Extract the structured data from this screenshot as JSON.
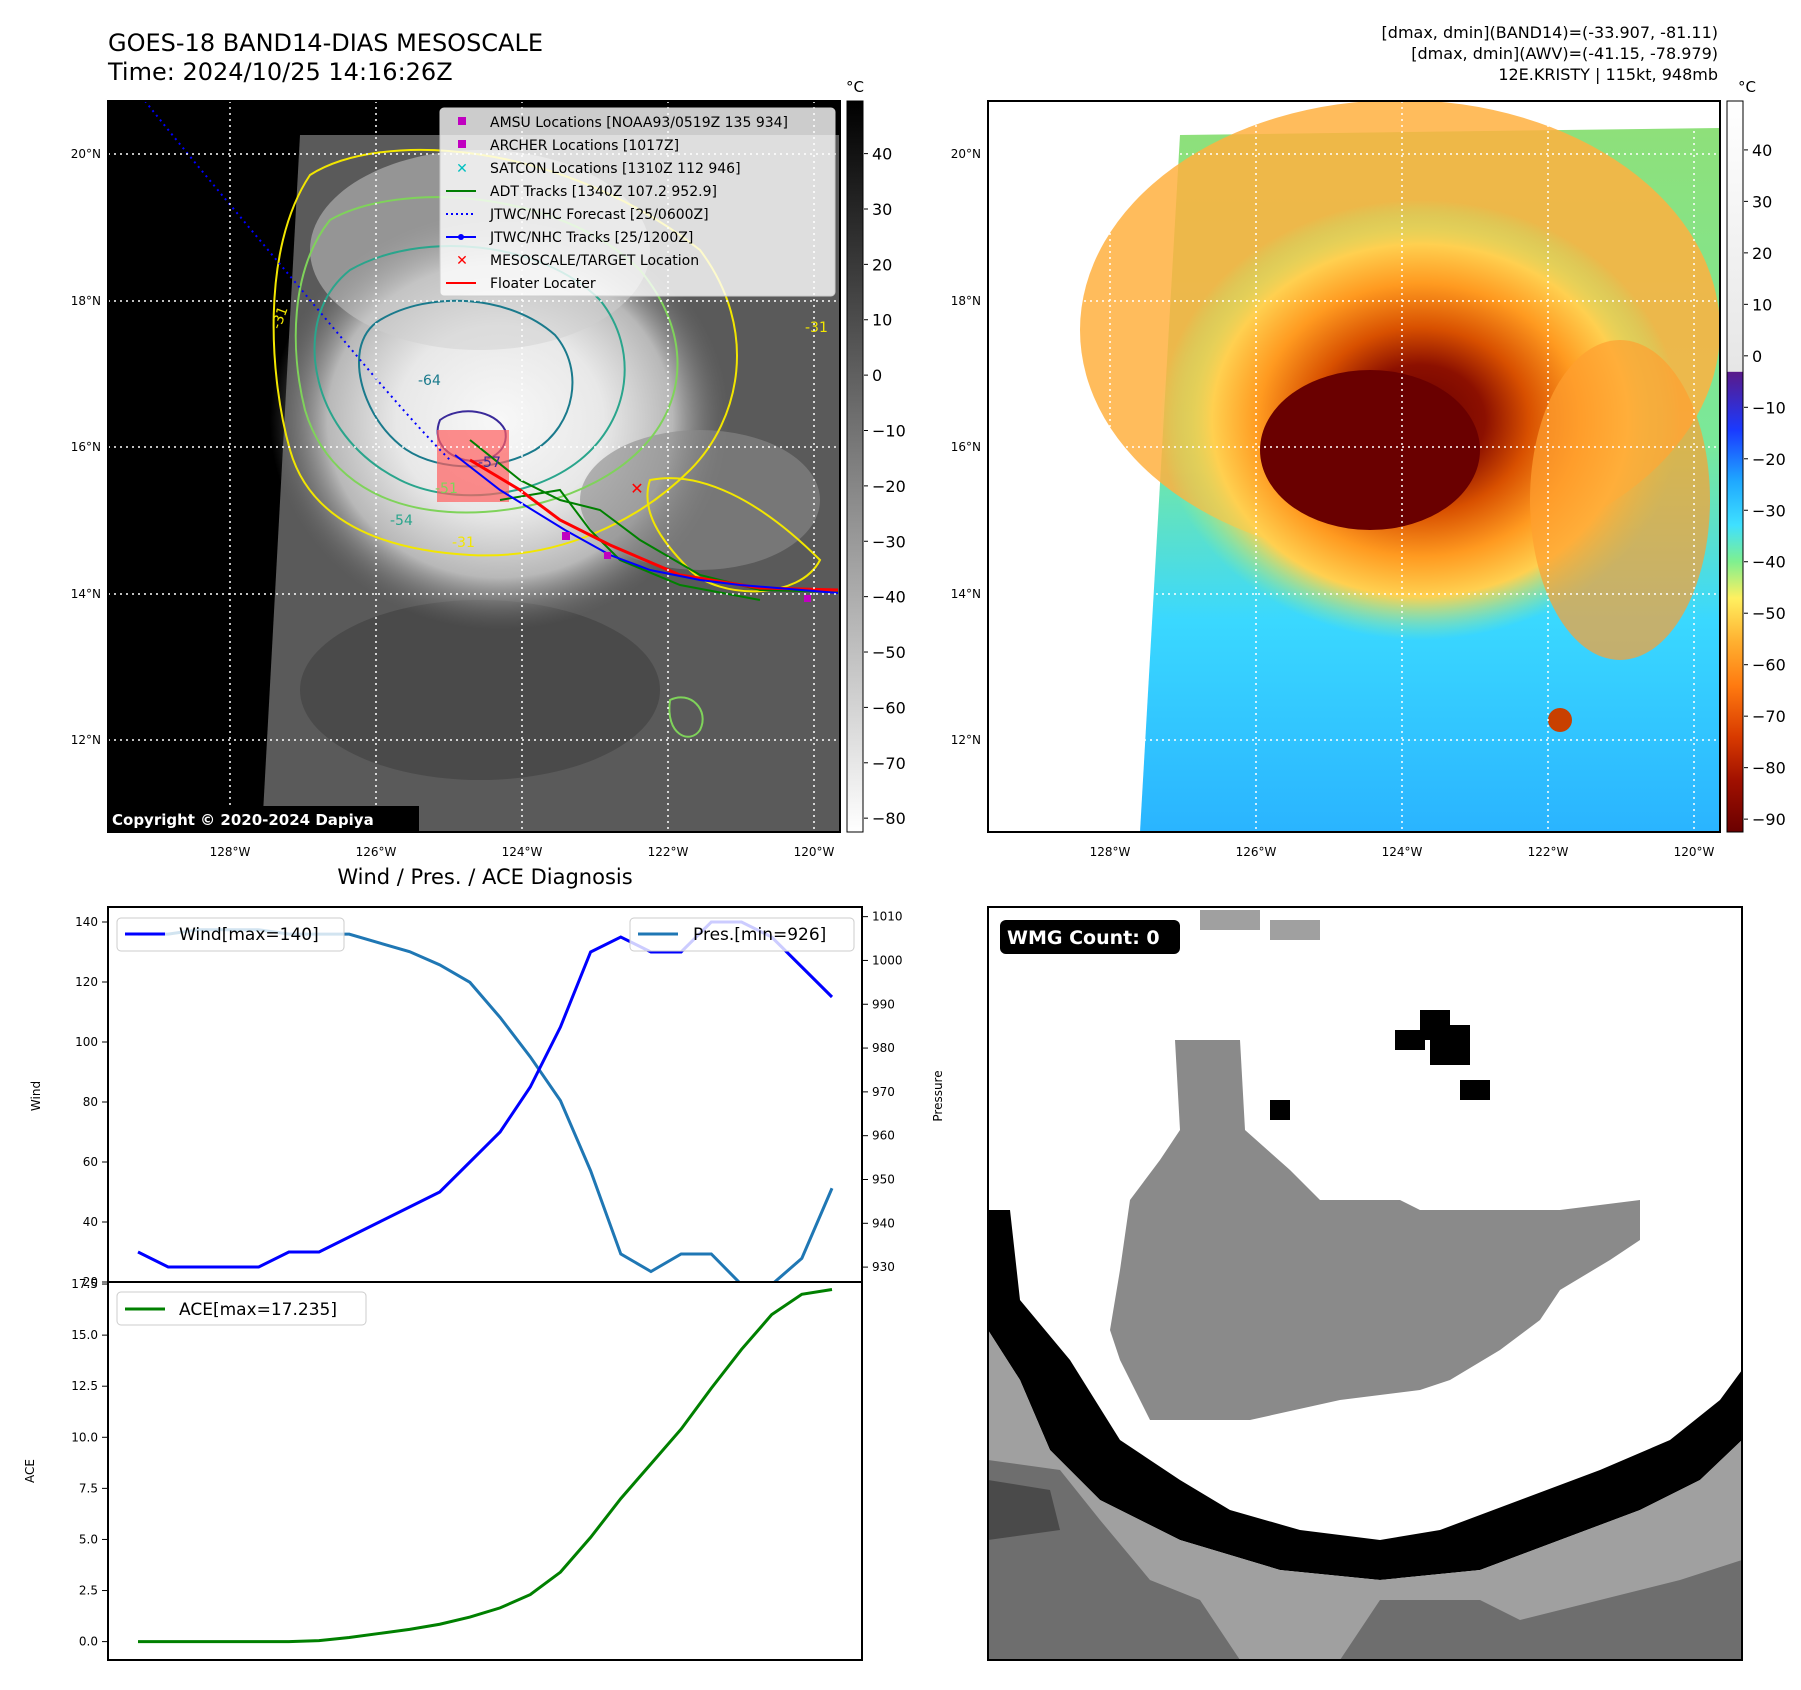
{
  "header": {
    "title_line1": "GOES-18 BAND14-DIAS MESOSCALE",
    "title_line2": "Time: 2024/10/25 14:16:26Z",
    "stats_line1": "[dmax, dmin](BAND14)=(-33.907, -81.11)",
    "stats_line2": "[dmax, dmin](AWV)=(-41.15, -78.979)",
    "stats_line3": "12E.KRISTY | 115kt, 948mb"
  },
  "map": {
    "lat_ticks": [
      "20°N",
      "18°N",
      "16°N",
      "14°N",
      "12°N"
    ],
    "lon_ticks": [
      "128°W",
      "126°W",
      "124°W",
      "122°W",
      "120°W"
    ],
    "copyright": "Copyright © 2020-2024 Dapiya",
    "contour_labels": [
      "-64",
      "-57",
      "-54",
      "-51",
      "-31",
      "-31",
      "-31"
    ]
  },
  "legend": {
    "items": [
      {
        "label": "AMSU Locations [NOAA93/0519Z 135 934]",
        "marker": "square",
        "color": "#c000c0"
      },
      {
        "label": "ARCHER Locations [1017Z]",
        "marker": "square",
        "color": "#c000c0"
      },
      {
        "label": "SATCON Locations [1310Z 112 946]",
        "marker": "x",
        "color": "#00c0c0"
      },
      {
        "label": "ADT Tracks [1340Z 107.2 952.9]",
        "marker": "line",
        "color": "#008000"
      },
      {
        "label": "JTWC/NHC Forecast [25/0600Z]",
        "marker": "dotted",
        "color": "#0000ff"
      },
      {
        "label": "JTWC/NHC Tracks [25/1200Z]",
        "marker": "line-dot",
        "color": "#0000ff"
      },
      {
        "label": "MESOSCALE/TARGET Location",
        "marker": "x",
        "color": "#ff0000"
      },
      {
        "label": "Floater Locater",
        "marker": "line",
        "color": "#ff0000"
      }
    ]
  },
  "colorbar_gray": {
    "unit": "°C",
    "ticks": [
      "40",
      "30",
      "20",
      "10",
      "0",
      "−10",
      "−20",
      "−30",
      "−40",
      "−50",
      "−60",
      "−70",
      "−80"
    ]
  },
  "colorbar_color": {
    "unit": "°C",
    "ticks": [
      "40",
      "30",
      "20",
      "10",
      "0",
      "−10",
      "−20",
      "−30",
      "−40",
      "−50",
      "−60",
      "−70",
      "−80",
      "−90"
    ]
  },
  "wmg": {
    "label": "WMG Count: 0"
  },
  "colors": {
    "wind": "#0000ff",
    "pressure": "#1f77b4",
    "ace": "#008000"
  },
  "chart_data": [
    {
      "type": "line",
      "title": "Wind / Pres. / ACE Diagnosis",
      "xlabel": "",
      "ylabel": "Wind",
      "ylabel_right": "Pressure",
      "ylim": [
        20,
        145
      ],
      "ylim_right": [
        926.6,
        1012.2
      ],
      "yticks": [
        20,
        40,
        60,
        80,
        100,
        120,
        140
      ],
      "yticks_right": [
        930,
        940,
        950,
        960,
        970,
        980,
        990,
        1000,
        1010
      ],
      "x": [
        0,
        1,
        2,
        3,
        4,
        5,
        6,
        7,
        8,
        9,
        10,
        11,
        12,
        13,
        14,
        15,
        16,
        17,
        18,
        19,
        20,
        21,
        22,
        23
      ],
      "series": [
        {
          "name": "Wind[max=140]",
          "axis": "left",
          "values": [
            30,
            25,
            25,
            25,
            25,
            30,
            30,
            35,
            40,
            45,
            50,
            60,
            70,
            85,
            105,
            130,
            135,
            130,
            130,
            140,
            140,
            135,
            125,
            115
          ]
        },
        {
          "name": "Pres.[min=926]",
          "axis": "right",
          "values": [
            1006,
            1006,
            1007,
            1007,
            1007,
            1006,
            1006,
            1006,
            1004,
            1002,
            999,
            995,
            987,
            978,
            968,
            952,
            933,
            929,
            933,
            933,
            926,
            926,
            932,
            948
          ]
        }
      ]
    },
    {
      "type": "line",
      "title": "",
      "xlabel": "",
      "ylabel": "ACE",
      "ylim": [
        -0.9,
        17.6
      ],
      "yticks": [
        0.0,
        2.5,
        5.0,
        7.5,
        10.0,
        12.5,
        15.0,
        17.5
      ],
      "x": [
        0,
        1,
        2,
        3,
        4,
        5,
        6,
        7,
        8,
        9,
        10,
        11,
        12,
        13,
        14,
        15,
        16,
        17,
        18,
        19,
        20,
        21,
        22,
        23
      ],
      "series": [
        {
          "name": "ACE[max=17.235]",
          "values": [
            0,
            0,
            0,
            0,
            0,
            0,
            0.05,
            0.2,
            0.4,
            0.6,
            0.85,
            1.2,
            1.65,
            2.3,
            3.4,
            5.1,
            7.0,
            8.7,
            10.4,
            12.4,
            14.3,
            16.0,
            17.0,
            17.235
          ]
        }
      ]
    }
  ]
}
